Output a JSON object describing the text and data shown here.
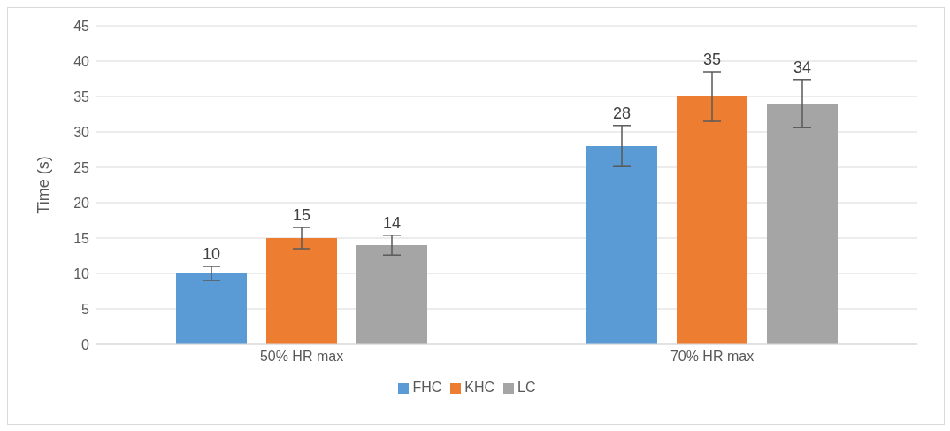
{
  "chart_data": {
    "type": "bar",
    "ylabel": "Time (s)",
    "categories": [
      "50% HR max",
      "70% HR max"
    ],
    "series": [
      {
        "name": "FHC",
        "color": "#5b9bd5",
        "values": [
          10,
          28
        ],
        "errors": [
          1,
          2.9
        ]
      },
      {
        "name": "KHC",
        "color": "#ed7d31",
        "values": [
          15,
          35
        ],
        "errors": [
          1.5,
          3.5
        ]
      },
      {
        "name": "LC",
        "color": "#a5a5a5",
        "values": [
          14,
          34
        ],
        "errors": [
          1.4,
          3.4
        ]
      }
    ],
    "ylim": [
      0,
      45
    ],
    "yticks": [
      0,
      5,
      10,
      15,
      20,
      25,
      30,
      35,
      40,
      45
    ],
    "grid": "y",
    "legend": "bottom",
    "data_labels": true
  }
}
